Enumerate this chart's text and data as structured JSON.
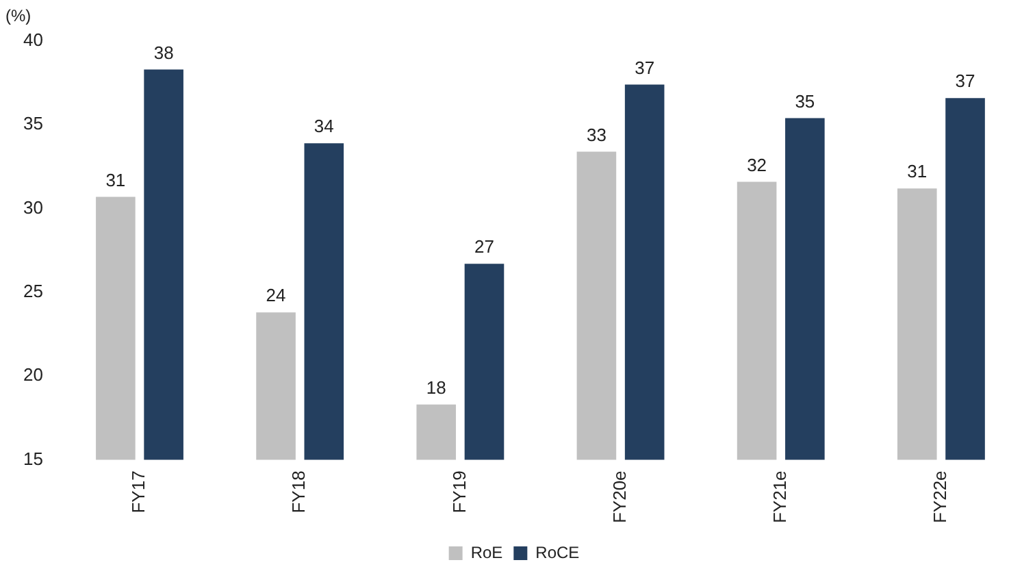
{
  "chart_data": {
    "type": "bar",
    "ylabel": "(%)",
    "categories": [
      "FY17",
      "FY18",
      "FY19",
      "FY20e",
      "FY21e",
      "FY22e"
    ],
    "series": [
      {
        "name": "RoE",
        "color": "#c0c0c0",
        "values": [
          30.7,
          23.8,
          18.3,
          33.4,
          31.6,
          31.2
        ],
        "value_labels": [
          "31",
          "24",
          "18",
          "33",
          "32",
          "31"
        ]
      },
      {
        "name": "RoCE",
        "color": "#243f5f",
        "values": [
          38.3,
          33.9,
          26.7,
          37.4,
          35.4,
          36.6
        ],
        "value_labels": [
          "38",
          "34",
          "27",
          "37",
          "35",
          "37"
        ]
      }
    ],
    "ylim": [
      15,
      40
    ],
    "yticks": [
      15,
      20,
      25,
      30,
      35,
      40
    ],
    "grid": false,
    "legend": "bottom"
  }
}
